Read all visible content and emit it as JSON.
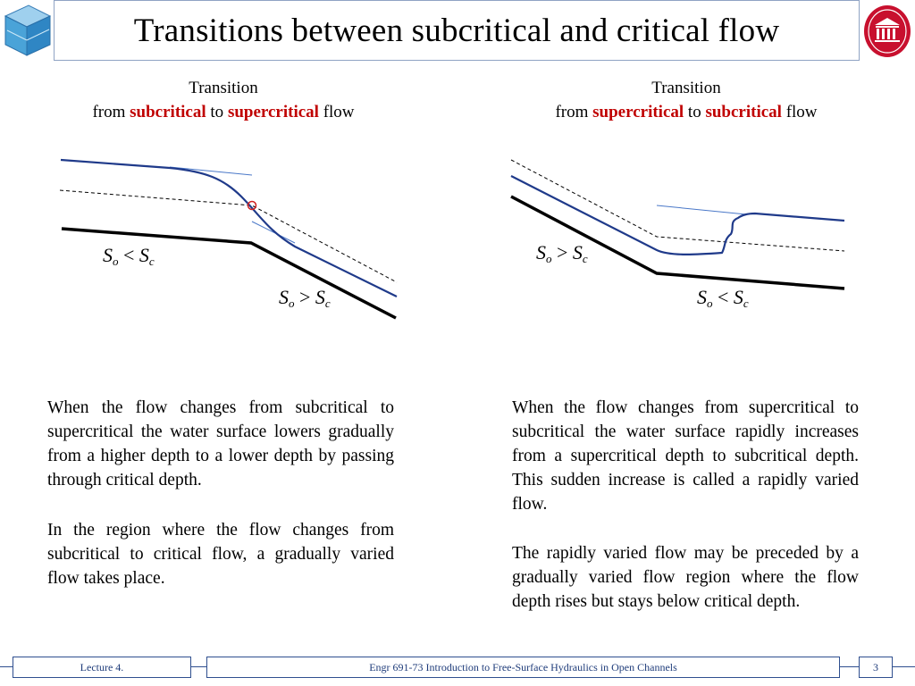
{
  "header": {
    "title": "Transitions between subcritical and critical flow"
  },
  "left": {
    "caption_line1": "Transition",
    "caption_from": "from ",
    "caption_state1": "subcritical",
    "caption_to": " to ",
    "caption_state2": "supercritical",
    "caption_end": " flow",
    "slope_upper": "S<sub>o</sub> &lt; S<sub>c</sub>",
    "slope_lower": "S<sub>o</sub> &gt; S<sub>c</sub>",
    "para1": "When the flow changes from subcritical to supercritical the water surface lowers gradually from a higher depth to a lower depth by passing through critical depth.",
    "para2": "In the region where the flow changes from subcritical to critical flow, a gradually varied flow takes place."
  },
  "right": {
    "caption_line1": "Transition",
    "caption_from": "from ",
    "caption_state1": "supercritical",
    "caption_to": " to ",
    "caption_state2": "subcritical",
    "caption_end": " flow",
    "para1": "When the flow changes from supercritical to subcritical the water surface rapidly increases from a supercritical depth to subcritical depth. This sudden increase is called a rapidly varied flow.",
    "para2": "The rapidly varied flow may be preceded by a gradually varied flow region where the flow depth rises but stays below critical depth."
  },
  "footer": {
    "lecture": "Lecture 4.",
    "course": "Engr 691-73 Introduction to Free-Surface Hydraulics in Open Channels",
    "page": "3"
  },
  "colors": {
    "accent_red": "#c00000",
    "water_surface": "#1f3a8a",
    "tangent": "#4a78c8",
    "footer_blue": "#1f3c7a",
    "border_blue": "#8fa3c4"
  }
}
